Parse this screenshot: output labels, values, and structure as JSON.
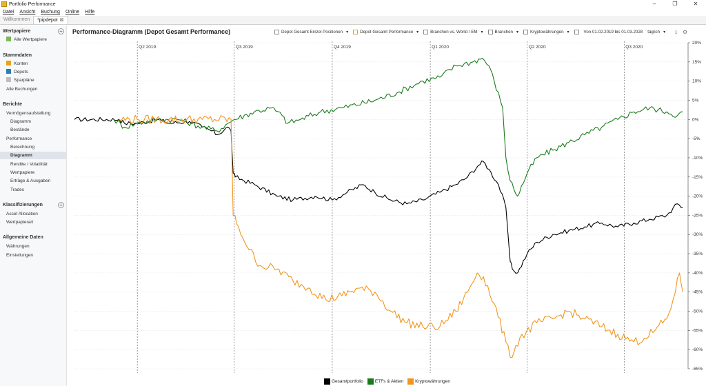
{
  "window": {
    "title": "Portfolio Performance",
    "minimize": "–",
    "maximize": "❐",
    "close": "✕"
  },
  "menu": [
    "Datei",
    "Ansicht",
    "Buchung",
    "Online",
    "Hilfe"
  ],
  "tabs": [
    {
      "label": "Willkommen",
      "active": false
    },
    {
      "label": "*pipdepot",
      "active": true,
      "close": "⊠"
    }
  ],
  "sidebar": {
    "wertpapiere": {
      "title": "Wertpapiere",
      "items": [
        "Alle Wertpapiere"
      ]
    },
    "stammdaten": {
      "title": "Stammdaten",
      "items": [
        "Konten",
        "Depots",
        "Sparpläne",
        "Alle Buchungen"
      ]
    },
    "berichte": {
      "title": "Berichte",
      "items": [
        "Vermögensaufstellung",
        "Diagramm",
        "Bestände",
        "Performance",
        "Berechnung",
        "Diagramm",
        "Rendite / Volatilität",
        "Wertpapiere",
        "Erträge & Ausgaben",
        "Trades"
      ]
    },
    "klassifizierungen": {
      "title": "Klassifizierungen",
      "items": [
        "Asset Allocation",
        "Wertpapierart"
      ]
    },
    "allgemein": {
      "title": "Allgemeine Daten",
      "items": [
        "Währungen",
        "Einstellungen"
      ]
    }
  },
  "toolbar": {
    "items": [
      "Depot Gesamt Einzel Positionen",
      "Depot Gesamt Performance",
      "Branchen vs. World / EM",
      "Branchen",
      "Kryptowährungen"
    ],
    "period": "Von 01.02.2019 bis 01.03.2028",
    "interval": "täglich"
  },
  "chart_data": {
    "type": "line",
    "title": "Performance-Diagramm (Depot Gesamt Performance)",
    "quarters": [
      "Q2 2019",
      "Q3 2019",
      "Q4 2019",
      "Q1 2020",
      "Q2 2020",
      "Q3 2020"
    ],
    "quarter_dates": [
      "2019-04-01",
      "2019-07-01",
      "2019-10-01",
      "2020-01-01",
      "2020-04-01",
      "2020-07-01"
    ],
    "x_range": [
      "2019-02-01",
      "2020-08-30"
    ],
    "ylim": [
      -65,
      20
    ],
    "yticks": [
      20,
      15,
      10,
      5,
      0,
      -5,
      -10,
      -15,
      -20,
      -25,
      -30,
      -35,
      -40,
      -45,
      -50,
      -55,
      -60,
      -65
    ],
    "ytick_labels": [
      "20%",
      "15%",
      "10%",
      "5%",
      "0%",
      "-5%",
      "-10%",
      "-15%",
      "-20%",
      "-25%",
      "-30%",
      "-35%",
      "-40%",
      "-45%",
      "-50%",
      "-55%",
      "-60%",
      "-65%"
    ],
    "grid": true,
    "legend_position": "bottom",
    "series": [
      {
        "name": "Gesamtportfolio",
        "color": "#000000",
        "points": [
          [
            "2019-02-01",
            0
          ],
          [
            "2019-03-15",
            0
          ],
          [
            "2019-03-20",
            -1
          ],
          [
            "2019-04-01",
            -1
          ],
          [
            "2019-04-20",
            0
          ],
          [
            "2019-05-01",
            -1
          ],
          [
            "2019-05-20",
            -0.5
          ],
          [
            "2019-06-01",
            -2
          ],
          [
            "2019-06-10",
            -3
          ],
          [
            "2019-06-15",
            -4
          ],
          [
            "2019-06-25",
            -2
          ],
          [
            "2019-06-28",
            -3
          ],
          [
            "2019-06-30",
            -14
          ],
          [
            "2019-07-02",
            -15
          ],
          [
            "2019-07-20",
            -17
          ],
          [
            "2019-08-10",
            -20
          ],
          [
            "2019-08-25",
            -21
          ],
          [
            "2019-09-15",
            -20
          ],
          [
            "2019-10-01",
            -21
          ],
          [
            "2019-10-15",
            -19
          ],
          [
            "2019-10-30",
            -17
          ],
          [
            "2019-11-10",
            -19
          ],
          [
            "2019-11-25",
            -21
          ],
          [
            "2019-12-10",
            -22
          ],
          [
            "2019-12-25",
            -21
          ],
          [
            "2020-01-10",
            -19
          ],
          [
            "2020-01-25",
            -17
          ],
          [
            "2020-02-05",
            -15
          ],
          [
            "2020-02-15",
            -12
          ],
          [
            "2020-02-20",
            -11
          ],
          [
            "2020-02-25",
            -13
          ],
          [
            "2020-03-05",
            -17
          ],
          [
            "2020-03-12",
            -23
          ],
          [
            "2020-03-16",
            -37
          ],
          [
            "2020-03-18",
            -39
          ],
          [
            "2020-03-23",
            -40
          ],
          [
            "2020-04-01",
            -35
          ],
          [
            "2020-04-10",
            -32
          ],
          [
            "2020-04-25",
            -30
          ],
          [
            "2020-05-10",
            -29
          ],
          [
            "2020-05-25",
            -28
          ],
          [
            "2020-06-10",
            -27
          ],
          [
            "2020-06-25",
            -28
          ],
          [
            "2020-07-10",
            -27
          ],
          [
            "2020-07-25",
            -26
          ],
          [
            "2020-08-10",
            -25
          ],
          [
            "2020-08-20",
            -22
          ],
          [
            "2020-08-25",
            -23
          ]
        ]
      },
      {
        "name": "ETFs & Aktien",
        "color": "#1a7a1a",
        "points": [
          [
            "2019-03-10",
            0
          ],
          [
            "2019-03-20",
            -2
          ],
          [
            "2019-04-01",
            -1
          ],
          [
            "2019-04-20",
            0
          ],
          [
            "2019-05-10",
            0
          ],
          [
            "2019-06-01",
            -2
          ],
          [
            "2019-06-15",
            -3
          ],
          [
            "2019-06-25",
            -1
          ],
          [
            "2019-07-01",
            0
          ],
          [
            "2019-07-20",
            2
          ],
          [
            "2019-08-05",
            3
          ],
          [
            "2019-08-15",
            1
          ],
          [
            "2019-08-20",
            -1
          ],
          [
            "2019-09-01",
            0
          ],
          [
            "2019-09-20",
            2
          ],
          [
            "2019-10-10",
            3
          ],
          [
            "2019-11-10",
            5
          ],
          [
            "2019-12-01",
            7
          ],
          [
            "2019-12-25",
            10
          ],
          [
            "2020-01-10",
            11
          ],
          [
            "2020-01-25",
            14
          ],
          [
            "2020-02-10",
            15
          ],
          [
            "2020-02-19",
            16
          ],
          [
            "2020-02-25",
            14
          ],
          [
            "2020-03-01",
            10
          ],
          [
            "2020-03-09",
            3
          ],
          [
            "2020-03-12",
            -10
          ],
          [
            "2020-03-16",
            -16
          ],
          [
            "2020-03-23",
            -20
          ],
          [
            "2020-04-01",
            -14
          ],
          [
            "2020-04-10",
            -10
          ],
          [
            "2020-04-25",
            -8
          ],
          [
            "2020-05-10",
            -6
          ],
          [
            "2020-05-25",
            -4
          ],
          [
            "2020-06-10",
            -2
          ],
          [
            "2020-06-25",
            0
          ],
          [
            "2020-07-10",
            2
          ],
          [
            "2020-07-25",
            3
          ],
          [
            "2020-08-10",
            2
          ],
          [
            "2020-08-20",
            1
          ],
          [
            "2020-08-25",
            2
          ]
        ]
      },
      {
        "name": "Kryptowährungen",
        "color": "#f0951e",
        "points": [
          [
            "2019-03-15",
            0
          ],
          [
            "2019-04-01",
            0
          ],
          [
            "2019-05-01",
            0
          ],
          [
            "2019-06-01",
            0
          ],
          [
            "2019-06-28",
            0
          ],
          [
            "2019-06-30",
            -25
          ],
          [
            "2019-07-05",
            -28
          ],
          [
            "2019-07-15",
            -34
          ],
          [
            "2019-07-25",
            -38
          ],
          [
            "2019-08-10",
            -39
          ],
          [
            "2019-08-25",
            -42
          ],
          [
            "2019-09-10",
            -44
          ],
          [
            "2019-09-25",
            -47
          ],
          [
            "2019-10-10",
            -46
          ],
          [
            "2019-10-25",
            -44
          ],
          [
            "2019-11-10",
            -45
          ],
          [
            "2019-11-25",
            -50
          ],
          [
            "2019-12-10",
            -53
          ],
          [
            "2019-12-25",
            -54
          ],
          [
            "2020-01-10",
            -54
          ],
          [
            "2020-01-25",
            -50
          ],
          [
            "2020-02-05",
            -45
          ],
          [
            "2020-02-14",
            -40
          ],
          [
            "2020-02-20",
            -41
          ],
          [
            "2020-03-01",
            -48
          ],
          [
            "2020-03-12",
            -58
          ],
          [
            "2020-03-16",
            -62
          ],
          [
            "2020-03-25",
            -57
          ],
          [
            "2020-04-10",
            -53
          ],
          [
            "2020-04-25",
            -52
          ],
          [
            "2020-05-10",
            -50
          ],
          [
            "2020-05-25",
            -52
          ],
          [
            "2020-06-10",
            -54
          ],
          [
            "2020-06-25",
            -56
          ],
          [
            "2020-07-10",
            -58
          ],
          [
            "2020-07-20",
            -57
          ],
          [
            "2020-07-30",
            -55
          ],
          [
            "2020-08-10",
            -52
          ],
          [
            "2020-08-18",
            -45
          ],
          [
            "2020-08-22",
            -40
          ],
          [
            "2020-08-25",
            -45
          ]
        ]
      }
    ]
  }
}
